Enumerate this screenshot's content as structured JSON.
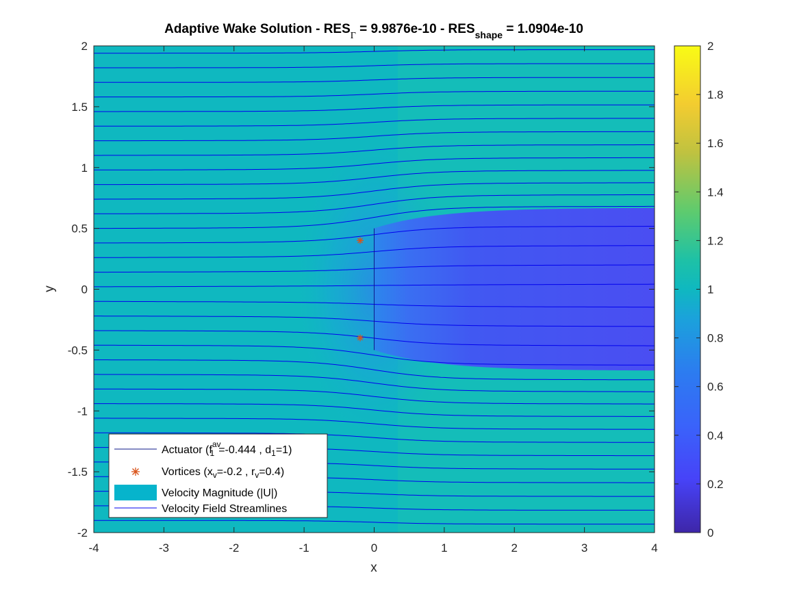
{
  "chart_data": {
    "type": "heatmap",
    "title": {
      "part1": "Adaptive Wake Solution - RES",
      "sub1": "Γ",
      "part2": " = 9.9876e-10 - RES",
      "sub2": "shape",
      "part3": " = 1.0904e-10"
    },
    "xlabel": "x",
    "ylabel": "y",
    "xlim": [
      -4,
      4
    ],
    "ylim": [
      -2,
      2
    ],
    "xticks": [
      "-4",
      "-3",
      "-2",
      "-1",
      "0",
      "1",
      "2",
      "3",
      "4"
    ],
    "yticks": [
      "-2",
      "-1.5",
      "-1",
      "-0.5",
      "0",
      "0.5",
      "1",
      "1.5",
      "2"
    ],
    "colorbar": {
      "clim": [
        0,
        2
      ],
      "ticks": [
        "0",
        "0.2",
        "0.4",
        "0.6",
        "0.8",
        "1",
        "1.2",
        "1.4",
        "1.6",
        "1.8",
        "2"
      ],
      "colormap": [
        "#3e26a8",
        "#4743f8",
        "#2c7cf0",
        "#1ba2db",
        "#0fb8c0",
        "#2ec68f",
        "#8ccc5c",
        "#e6bc2f",
        "#fada2a",
        "#f9fb15"
      ]
    },
    "field_colors": {
      "freestream": "#14bdb9",
      "freestream_upstream": "#0fb8c0",
      "actuator_zone": "#1a9fd7",
      "wake_core": "#4154f0",
      "wake_edge": "#4a4ef2"
    },
    "actuator": {
      "x": 0,
      "y_range": [
        -0.5,
        0.5
      ]
    },
    "vortices": {
      "x": [
        -0.2,
        -0.2
      ],
      "y": [
        0.4,
        -0.4
      ],
      "color": "#d95319"
    },
    "wake_boundary": {
      "x_start": 0,
      "y_start": 0.5,
      "y_end": 0.67
    },
    "streamline_color": "#0000ee",
    "streamline_y0": [
      -1.9,
      -1.78,
      -1.66,
      -1.54,
      -1.42,
      -1.3,
      -1.18,
      -1.06,
      -0.94,
      -0.82,
      -0.7,
      -0.58,
      -0.46,
      -0.34,
      -0.22,
      -0.1,
      0.02,
      0.14,
      0.26,
      0.38,
      0.5,
      0.62,
      0.74,
      0.86,
      0.98,
      1.1,
      1.22,
      1.34,
      1.46,
      1.58,
      1.7,
      1.82,
      1.94
    ],
    "legend": {
      "location": "bottom-left",
      "entries": [
        {
          "parts": [
            "Actuator (f",
            "av",
            "1",
            "=-0.444 , d",
            "1",
            "=1)"
          ]
        },
        {
          "parts": [
            "Vortices (x",
            "v",
            "=-0.2 , r",
            "v",
            "=0.4)"
          ]
        },
        {
          "parts": [
            "Velocity Magnitude (|U|)"
          ]
        },
        {
          "parts": [
            "Velocity Field Streamlines"
          ]
        }
      ]
    }
  }
}
